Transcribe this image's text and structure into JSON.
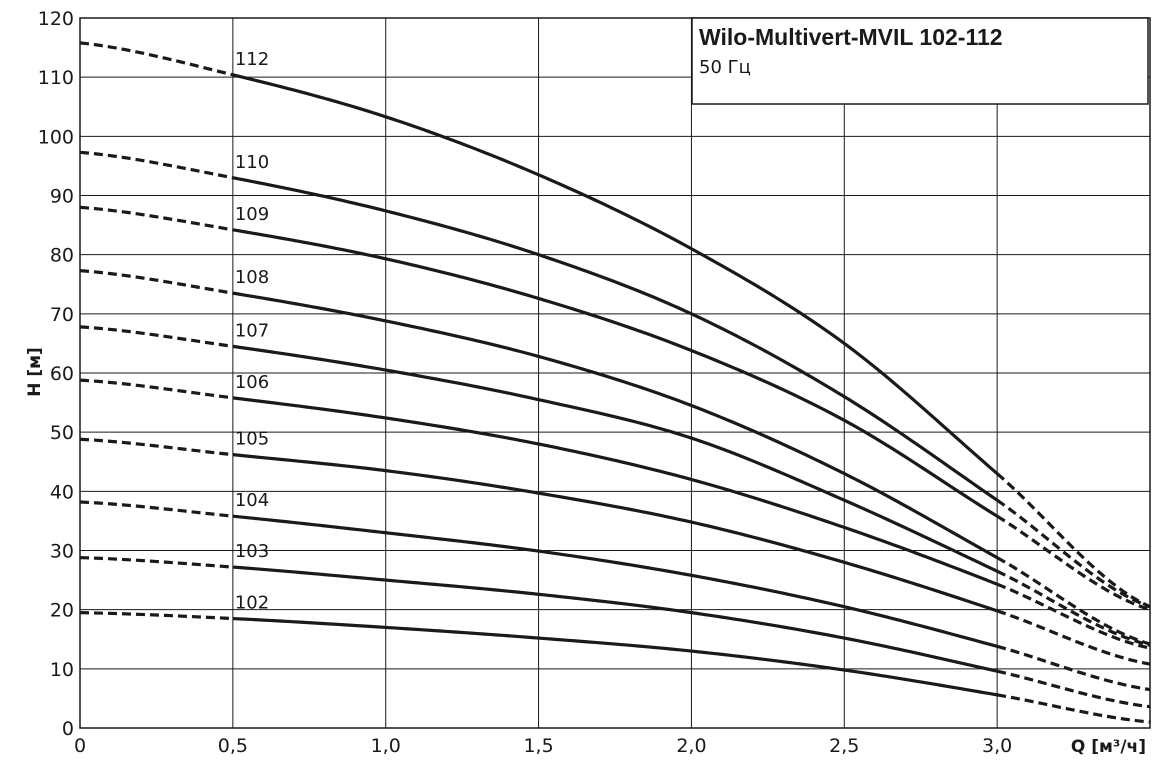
{
  "chart_data": {
    "type": "line",
    "title": "Wilo-Multivert-MVIL 102-112",
    "subtitle": "50 Гц",
    "xlabel": "Q [м³/ч]",
    "ylabel": "H [м]",
    "xlim": [
      0,
      3.5
    ],
    "ylim": [
      0,
      120
    ],
    "x_ticks": [
      0,
      0.5,
      1.0,
      1.5,
      2.0,
      2.5,
      3.0
    ],
    "x_tick_labels": [
      "0",
      "0,5",
      "1,0",
      "1,5",
      "2,0",
      "2,5",
      "3,0"
    ],
    "y_ticks": [
      0,
      10,
      20,
      30,
      40,
      50,
      60,
      70,
      80,
      90,
      100,
      110,
      120
    ],
    "y_tick_labels": [
      "0",
      "10",
      "20",
      "30",
      "40",
      "50",
      "60",
      "70",
      "80",
      "90",
      "100",
      "110",
      "120"
    ],
    "grid": true,
    "operating_range": [
      0.5,
      3.0
    ],
    "series": [
      {
        "name": "102",
        "x": [
          0,
          0.5,
          1.0,
          1.5,
          2.0,
          2.5,
          3.0,
          3.5
        ],
        "y": [
          19.5,
          18.5,
          17.0,
          15.2,
          13.0,
          9.8,
          5.6,
          1.0
        ]
      },
      {
        "name": "103",
        "x": [
          0,
          0.5,
          1.0,
          1.5,
          2.0,
          2.5,
          3.0,
          3.5
        ],
        "y": [
          28.8,
          27.2,
          25.0,
          22.6,
          19.5,
          15.2,
          9.6,
          3.6
        ]
      },
      {
        "name": "104",
        "x": [
          0,
          0.5,
          1.0,
          1.5,
          2.0,
          2.5,
          3.0,
          3.5
        ],
        "y": [
          38.2,
          35.8,
          33.0,
          29.9,
          25.8,
          20.5,
          13.8,
          6.5
        ]
      },
      {
        "name": "105",
        "x": [
          0,
          0.5,
          1.0,
          1.5,
          2.0,
          2.5,
          3.0,
          3.5
        ],
        "y": [
          48.8,
          46.2,
          43.5,
          39.7,
          34.8,
          28.0,
          19.8,
          10.8
        ]
      },
      {
        "name": "106",
        "x": [
          0,
          0.5,
          1.0,
          1.5,
          2.0,
          2.5,
          3.0,
          3.5
        ],
        "y": [
          58.8,
          55.8,
          52.4,
          48.0,
          42.0,
          33.9,
          24.3,
          13.5
        ]
      },
      {
        "name": "107",
        "x": [
          0,
          0.5,
          1.0,
          1.5,
          2.0,
          2.5,
          3.0,
          3.5
        ],
        "y": [
          67.8,
          64.5,
          60.5,
          55.5,
          49.0,
          38.5,
          26.5,
          14.0
        ]
      },
      {
        "name": "108",
        "x": [
          0,
          0.5,
          1.0,
          1.5,
          2.0,
          2.5,
          3.0,
          3.5
        ],
        "y": [
          77.3,
          73.5,
          68.8,
          62.8,
          54.5,
          43.0,
          28.8,
          14.2
        ]
      },
      {
        "name": "109",
        "x": [
          0,
          0.5,
          1.0,
          1.5,
          2.0,
          2.5,
          3.0,
          3.5
        ],
        "y": [
          88.0,
          84.2,
          79.3,
          72.6,
          63.8,
          52.0,
          35.8,
          20.0
        ]
      },
      {
        "name": "110",
        "x": [
          0,
          0.5,
          1.0,
          1.5,
          2.0,
          2.5,
          3.0,
          3.5
        ],
        "y": [
          97.3,
          93.0,
          87.4,
          80.0,
          70.0,
          56.0,
          38.5,
          20.5
        ]
      },
      {
        "name": "112",
        "x": [
          0,
          0.5,
          1.0,
          1.5,
          2.0,
          2.5,
          3.0,
          3.5
        ],
        "y": [
          115.8,
          110.4,
          103.3,
          93.5,
          81.0,
          65.0,
          43.0,
          20.5
        ]
      }
    ]
  }
}
